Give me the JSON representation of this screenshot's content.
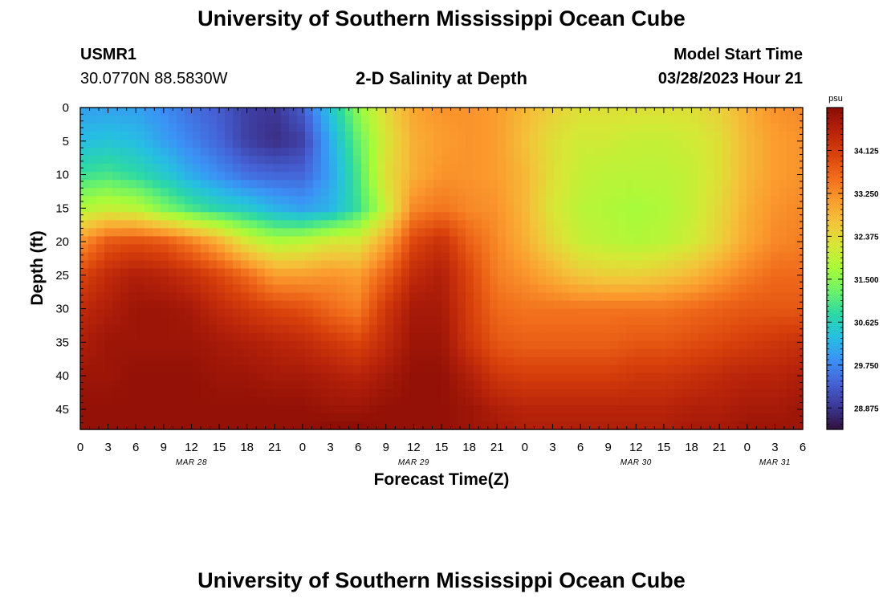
{
  "page": {
    "title": "University of Southern Mississippi Ocean Cube",
    "title_repeat": "University of Southern Mississippi Ocean Cube",
    "station": "USMR1",
    "coords": "30.0770N  88.5830W",
    "subtitle": "2-D Salinity at Depth",
    "model_label": "Model Start Time",
    "model_time": "03/28/2023 Hour 21"
  },
  "chart_data": {
    "type": "heatmap",
    "title": "2-D Salinity at Depth",
    "xlabel": "Forecast Time(Z)",
    "ylabel": "Depth (ft)",
    "colorbar_unit": "psu",
    "x_range": [
      0,
      78
    ],
    "x_ticks": [
      0,
      3,
      6,
      9,
      12,
      15,
      18,
      21,
      24,
      27,
      30,
      33,
      36,
      39,
      42,
      45,
      48,
      51,
      54,
      57,
      60,
      63,
      66,
      69,
      72,
      75,
      78
    ],
    "x_tick_labels": [
      "0",
      "3",
      "6",
      "9",
      "12",
      "15",
      "18",
      "21",
      "0",
      "3",
      "6",
      "9",
      "12",
      "15",
      "18",
      "21",
      "0",
      "3",
      "6",
      "9",
      "12",
      "15",
      "18",
      "21",
      "0",
      "3",
      "6"
    ],
    "date_labels": [
      {
        "text": "MAR 28",
        "hour": 12
      },
      {
        "text": "MAR 29",
        "hour": 36
      },
      {
        "text": "MAR 30",
        "hour": 60
      },
      {
        "text": "MAR 31",
        "hour": 75
      }
    ],
    "y_range": [
      0,
      48
    ],
    "y_ticks": [
      0,
      5,
      10,
      15,
      20,
      25,
      30,
      35,
      40,
      45
    ],
    "y_tick_labels": [
      "0",
      "5",
      "10",
      "15",
      "20",
      "25",
      "30",
      "35",
      "40",
      "45"
    ],
    "value_range": [
      28.4375,
      35.0
    ],
    "colorbar_ticks": [
      28.875,
      29.75,
      30.625,
      31.5,
      32.375,
      33.25,
      34.125
    ],
    "colorbar_tick_labels": [
      "28.875",
      "29.750",
      "30.625",
      "31.500",
      "32.375",
      "33.250",
      "34.125"
    ],
    "colors": [
      "#30123b",
      "#3d3796",
      "#4562d6",
      "#3b91f6",
      "#26bfe2",
      "#2bd8a6",
      "#6bf26a",
      "#a8fb39",
      "#d7e736",
      "#f3c43a",
      "#fb9b2e",
      "#f06a1a",
      "#d8400b",
      "#b6220a",
      "#8a0c05"
    ],
    "grid_hours": [
      0,
      3,
      6,
      9,
      12,
      15,
      18,
      21,
      24,
      27,
      30,
      33,
      36,
      39,
      42,
      45,
      48,
      51,
      54,
      57,
      60,
      63,
      66,
      69,
      72,
      75,
      78
    ],
    "grid_depths": [
      0,
      5,
      10,
      15,
      20,
      25,
      30,
      35,
      40,
      45,
      48
    ],
    "salinity": [
      [
        30.0,
        30.0,
        30.0,
        29.8,
        29.5,
        29.3,
        29.0,
        28.9,
        29.3,
        30.4,
        31.5,
        32.4,
        33.0,
        33.2,
        33.2,
        33.1,
        32.8,
        32.5,
        32.3,
        32.3,
        32.3,
        32.3,
        32.3,
        32.5,
        32.9,
        33.2,
        33.3
      ],
      [
        30.3,
        30.4,
        30.3,
        30.0,
        29.7,
        29.4,
        29.0,
        28.8,
        29.0,
        30.1,
        31.2,
        32.2,
        32.9,
        33.1,
        33.2,
        33.1,
        32.7,
        32.3,
        32.1,
        32.1,
        32.0,
        32.0,
        32.1,
        32.3,
        32.8,
        33.1,
        33.2
      ],
      [
        30.9,
        31.0,
        30.8,
        30.5,
        30.1,
        29.8,
        29.5,
        29.4,
        29.4,
        30.0,
        31.0,
        32.3,
        32.9,
        33.2,
        33.2,
        33.1,
        32.8,
        32.3,
        32.0,
        31.9,
        31.9,
        31.9,
        32.0,
        32.3,
        32.8,
        33.1,
        33.2
      ],
      [
        31.8,
        32.0,
        31.9,
        31.4,
        31.0,
        30.7,
        30.5,
        30.2,
        30.0,
        30.2,
        30.9,
        32.0,
        33.3,
        33.5,
        33.3,
        33.2,
        32.8,
        32.2,
        31.9,
        31.8,
        31.7,
        31.8,
        32.0,
        32.4,
        32.9,
        33.2,
        33.3
      ],
      [
        33.2,
        33.8,
        33.9,
        33.8,
        33.4,
        32.9,
        32.2,
        31.8,
        31.9,
        32.2,
        32.2,
        33.0,
        34.0,
        34.3,
        33.7,
        33.3,
        32.9,
        32.4,
        32.0,
        31.9,
        31.8,
        31.9,
        32.1,
        32.5,
        33.0,
        33.3,
        33.4
      ],
      [
        34.0,
        34.4,
        34.6,
        34.5,
        34.3,
        34.0,
        33.6,
        33.1,
        33.1,
        33.2,
        33.1,
        33.7,
        34.4,
        34.6,
        34.0,
        33.4,
        33.2,
        32.9,
        32.6,
        32.5,
        32.5,
        32.6,
        32.8,
        33.1,
        33.4,
        33.6,
        33.6
      ],
      [
        34.4,
        34.6,
        34.8,
        34.8,
        34.7,
        34.4,
        34.2,
        34.0,
        33.9,
        33.6,
        33.4,
        34.2,
        34.7,
        34.7,
        34.1,
        33.6,
        33.5,
        33.5,
        33.5,
        33.5,
        33.5,
        33.5,
        33.6,
        33.7,
        33.8,
        33.8,
        33.8
      ],
      [
        34.6,
        34.8,
        34.8,
        34.8,
        34.8,
        34.7,
        34.6,
        34.5,
        34.4,
        34.2,
        34.0,
        34.4,
        34.8,
        34.8,
        34.2,
        33.8,
        33.7,
        33.7,
        33.7,
        33.7,
        33.8,
        33.8,
        33.9,
        34.0,
        34.1,
        34.2,
        34.3
      ],
      [
        34.8,
        34.8,
        34.9,
        34.9,
        34.9,
        34.8,
        34.8,
        34.7,
        34.7,
        34.6,
        34.5,
        34.7,
        34.9,
        34.9,
        34.6,
        34.2,
        34.1,
        34.1,
        34.1,
        34.1,
        34.2,
        34.2,
        34.3,
        34.4,
        34.5,
        34.5,
        34.6
      ],
      [
        34.9,
        34.9,
        34.9,
        34.9,
        34.9,
        34.9,
        34.9,
        34.9,
        34.9,
        34.8,
        34.8,
        34.9,
        34.9,
        34.9,
        34.8,
        34.6,
        34.5,
        34.5,
        34.5,
        34.5,
        34.5,
        34.5,
        34.6,
        34.6,
        34.7,
        34.7,
        34.8
      ],
      [
        34.9,
        34.9,
        34.9,
        34.9,
        34.9,
        34.9,
        34.9,
        34.9,
        34.9,
        35.0,
        35.0,
        34.9,
        34.9,
        34.9,
        34.8,
        34.7,
        34.6,
        34.6,
        34.6,
        34.6,
        34.6,
        34.6,
        34.7,
        34.7,
        34.8,
        34.8,
        34.8
      ]
    ]
  }
}
